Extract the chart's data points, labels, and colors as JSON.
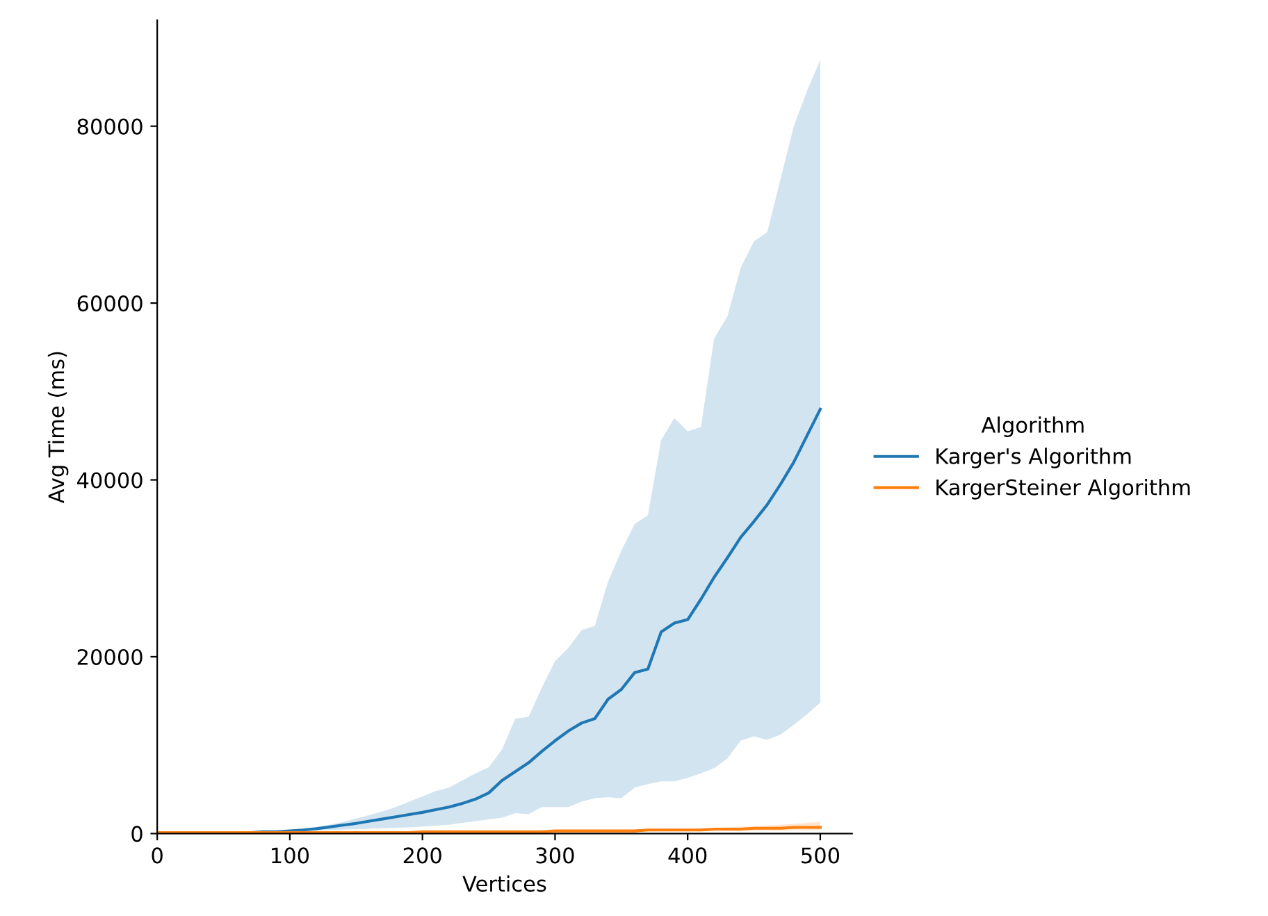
{
  "chart_data": {
    "type": "line",
    "xlabel": "Vertices",
    "ylabel": "Avg Time (ms)",
    "legend_title": "Algorithm",
    "legend": "right",
    "grid": false,
    "xlim": [
      0,
      524
    ],
    "ylim": [
      0,
      92000
    ],
    "xticks": [
      0,
      100,
      200,
      300,
      400,
      500
    ],
    "yticks": [
      0,
      20000,
      40000,
      60000,
      80000
    ],
    "x": [
      0,
      10,
      20,
      30,
      40,
      50,
      60,
      70,
      80,
      90,
      100,
      110,
      120,
      130,
      140,
      150,
      160,
      170,
      180,
      190,
      200,
      210,
      220,
      230,
      240,
      250,
      260,
      270,
      280,
      290,
      300,
      310,
      320,
      330,
      340,
      350,
      360,
      370,
      380,
      390,
      400,
      410,
      420,
      430,
      440,
      450,
      460,
      470,
      480,
      490,
      500
    ],
    "series": [
      {
        "name": "Karger's Algorithm",
        "color": "#1f77b4",
        "values": [
          null,
          null,
          null,
          null,
          null,
          100,
          100,
          100,
          200,
          200,
          300,
          400,
          550,
          750,
          950,
          1150,
          1400,
          1650,
          1900,
          2150,
          2400,
          2700,
          3000,
          3400,
          3900,
          4600,
          6000,
          7000,
          8000,
          9300,
          10500,
          11600,
          12500,
          13000,
          15200,
          16300,
          18200,
          18600,
          22800,
          23800,
          24200,
          26500,
          29000,
          31200,
          33500,
          35300,
          37200,
          39500,
          42000,
          45000,
          48000
        ],
        "lower": [
          0,
          5,
          10,
          20,
          35,
          55,
          80,
          120,
          170,
          200,
          250,
          300,
          350,
          400,
          450,
          500,
          550,
          600,
          650,
          700,
          800,
          900,
          1000,
          1200,
          1400,
          1600,
          1800,
          2300,
          2200,
          3000,
          3000,
          3000,
          3600,
          4000,
          4100,
          4000,
          5200,
          5600,
          5900,
          5900,
          6300,
          6800,
          7400,
          8500,
          10500,
          11000,
          10600,
          11200,
          12300,
          13500,
          14800
        ],
        "upper": [
          0,
          5,
          10,
          20,
          35,
          55,
          80,
          120,
          170,
          260,
          350,
          500,
          700,
          1000,
          1300,
          1700,
          2100,
          2500,
          3000,
          3600,
          4200,
          4800,
          5200,
          6000,
          6800,
          7500,
          9500,
          13000,
          13200,
          16500,
          19500,
          21000,
          23000,
          23500,
          28500,
          32000,
          35000,
          36000,
          44500,
          47000,
          45500,
          46000,
          56000,
          58500,
          64000,
          67000,
          68000,
          74000,
          80000,
          84000,
          87500
        ]
      },
      {
        "name": "KargerSteiner Algorithm",
        "color": "#ff7f0e",
        "values": [
          100,
          100,
          100,
          100,
          100,
          100,
          100,
          100,
          100,
          100,
          100,
          100,
          100,
          100,
          100,
          100,
          100,
          100,
          100,
          100,
          200,
          200,
          200,
          200,
          200,
          200,
          200,
          200,
          200,
          200,
          300,
          300,
          300,
          300,
          300,
          300,
          300,
          400,
          400,
          400,
          400,
          400,
          500,
          500,
          500,
          600,
          600,
          600,
          700,
          700,
          700
        ],
        "lower": [
          10,
          12,
          14,
          16,
          18,
          20,
          25,
          30,
          35,
          40,
          45,
          50,
          55,
          60,
          70,
          80,
          90,
          100,
          110,
          120,
          130,
          135,
          140,
          145,
          150,
          155,
          160,
          165,
          170,
          175,
          180,
          190,
          200,
          210,
          220,
          230,
          240,
          250,
          260,
          270,
          280,
          290,
          300,
          310,
          320,
          330,
          340,
          350,
          370,
          390,
          400
        ],
        "upper": [
          10,
          12,
          14,
          16,
          18,
          20,
          25,
          30,
          35,
          40,
          45,
          50,
          55,
          60,
          70,
          80,
          90,
          100,
          110,
          120,
          170,
          185,
          200,
          215,
          230,
          245,
          260,
          275,
          290,
          305,
          320,
          340,
          360,
          380,
          400,
          420,
          440,
          460,
          480,
          500,
          520,
          580,
          640,
          700,
          760,
          820,
          900,
          1000,
          1100,
          1200,
          1300
        ]
      }
    ]
  }
}
